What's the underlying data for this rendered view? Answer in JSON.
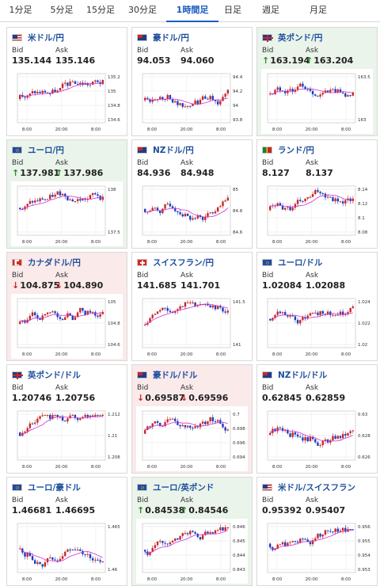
{
  "tabs": [
    "1分足",
    "5分足",
    "15分足",
    "30分足",
    "1時間足",
    "日足",
    "週足",
    "月足"
  ],
  "active_tab": 4,
  "labels": {
    "bid": "Bid",
    "ask": "Ask"
  },
  "colors": {
    "accent": "#1a5bbd",
    "up": "#2e8b2e",
    "down": "#c62828",
    "candle_up": "#c62828",
    "candle_down": "#1a3fbf",
    "ma": "#d22ed2"
  },
  "cards": [
    {
      "title": "米ドル/円",
      "flag": "us-flag",
      "bid": "135.144",
      "ask": "135.146",
      "trend": "none",
      "chart_data": {
        "type": "candlestick",
        "ticks_y": [
          "135.2",
          "135",
          "134.8",
          "134.6"
        ],
        "ticks_x": [
          "8:00",
          "20:00",
          "8:00"
        ]
      }
    },
    {
      "title": "豪ドル/円",
      "flag": "au-flag",
      "bid": "94.053",
      "ask": "94.060",
      "trend": "none",
      "chart_data": {
        "type": "candlestick",
        "ticks_y": [
          "94.4",
          "94.2",
          "94",
          "93.8"
        ],
        "ticks_x": [
          "8:00",
          "20:00",
          "8:00"
        ]
      }
    },
    {
      "title": "英ポンド/円",
      "flag": "uk-flag",
      "bid": "163.194",
      "ask": "163.204",
      "trend": "up",
      "chart_data": {
        "type": "candlestick",
        "ticks_y": [
          "163.5",
          "163"
        ],
        "ticks_x": [
          "8:00",
          "20:00",
          "8:00"
        ]
      }
    },
    {
      "title": "ユーロ/円",
      "flag": "eu-flag",
      "bid": "137.981",
      "ask": "137.986",
      "trend": "up",
      "chart_data": {
        "type": "candlestick",
        "ticks_y": [
          "138",
          "137.5"
        ],
        "ticks_x": [
          "8:00",
          "20:00",
          "8:00"
        ]
      }
    },
    {
      "title": "NZドル/円",
      "flag": "nz-flag",
      "bid": "84.936",
      "ask": "84.948",
      "trend": "none",
      "chart_data": {
        "type": "candlestick",
        "ticks_y": [
          "85",
          "84.8",
          "84.6"
        ],
        "ticks_x": [
          "8:00",
          "20:00",
          "8:00"
        ]
      }
    },
    {
      "title": "ランド/円",
      "flag": "za-flag",
      "bid": "8.127",
      "ask": "8.137",
      "trend": "none",
      "chart_data": {
        "type": "candlestick",
        "ticks_y": [
          "8.14",
          "8.12",
          "8.1",
          "8.08"
        ],
        "ticks_x": [
          "8:00",
          "20:00",
          "8:00"
        ]
      }
    },
    {
      "title": "カナダドル/円",
      "flag": "ca-flag",
      "bid": "104.875",
      "ask": "104.890",
      "trend": "down",
      "chart_data": {
        "type": "candlestick",
        "ticks_y": [
          "105",
          "104.8",
          "104.6"
        ],
        "ticks_x": [
          "8:00",
          "20:00",
          "8:00"
        ]
      }
    },
    {
      "title": "スイスフラン/円",
      "flag": "ch-flag",
      "bid": "141.685",
      "ask": "141.701",
      "trend": "none",
      "chart_data": {
        "type": "candlestick",
        "ticks_y": [
          "141.5",
          "141"
        ],
        "ticks_x": [
          "8:00",
          "20:00",
          "8:00"
        ]
      }
    },
    {
      "title": "ユーロ/ドル",
      "flag": "eu-flag",
      "bid": "1.02084",
      "ask": "1.02088",
      "trend": "none",
      "chart_data": {
        "type": "candlestick",
        "ticks_y": [
          "1.024",
          "1.022",
          "1.02"
        ],
        "ticks_x": [
          "8:00",
          "20:00",
          "8:00"
        ]
      }
    },
    {
      "title": "英ポンド/ドル",
      "flag": "uk-flag",
      "bid": "1.20746",
      "ask": "1.20756",
      "trend": "none",
      "chart_data": {
        "type": "candlestick",
        "ticks_y": [
          "1.212",
          "1.21",
          "1.208"
        ],
        "ticks_x": [
          "8:00",
          "20:00",
          "8:00"
        ]
      }
    },
    {
      "title": "豪ドル/ドル",
      "flag": "au-flag",
      "bid": "0.69587",
      "ask": "0.69596",
      "trend": "down",
      "chart_data": {
        "type": "candlestick",
        "ticks_y": [
          "0.7",
          "0.698",
          "0.696",
          "0.694"
        ],
        "ticks_x": [
          "8:00",
          "20:00",
          "8:00"
        ]
      }
    },
    {
      "title": "NZドル/ドル",
      "flag": "nz-flag",
      "bid": "0.62845",
      "ask": "0.62859",
      "trend": "none",
      "chart_data": {
        "type": "candlestick",
        "ticks_y": [
          "0.63",
          "0.628",
          "0.626"
        ],
        "ticks_x": [
          "8:00",
          "20:00",
          "8:00"
        ]
      }
    },
    {
      "title": "ユーロ/豪ドル",
      "flag": "eu-flag",
      "bid": "1.46681",
      "ask": "1.46695",
      "trend": "none",
      "chart_data": {
        "type": "candlestick",
        "ticks_y": [
          "1.465",
          "1.46"
        ],
        "ticks_x": [
          "8:00",
          "20:00",
          "8:00"
        ]
      }
    },
    {
      "title": "ユーロ/英ポンド",
      "flag": "eu-flag",
      "bid": "0.84538",
      "ask": "0.84546",
      "trend": "up",
      "chart_data": {
        "type": "candlestick",
        "ticks_y": [
          "0.846",
          "0.845",
          "0.844",
          "0.843"
        ],
        "ticks_x": [
          "8:00",
          "20:00",
          "8:00"
        ]
      }
    },
    {
      "title": "米ドル/スイスフラン",
      "flag": "us-flag",
      "bid": "0.95392",
      "ask": "0.95407",
      "trend": "none",
      "chart_data": {
        "type": "candlestick",
        "ticks_y": [
          "0.956",
          "0.955",
          "0.954",
          "0.953"
        ],
        "ticks_x": [
          "8:00",
          "20:00",
          "8:00"
        ]
      }
    }
  ]
}
